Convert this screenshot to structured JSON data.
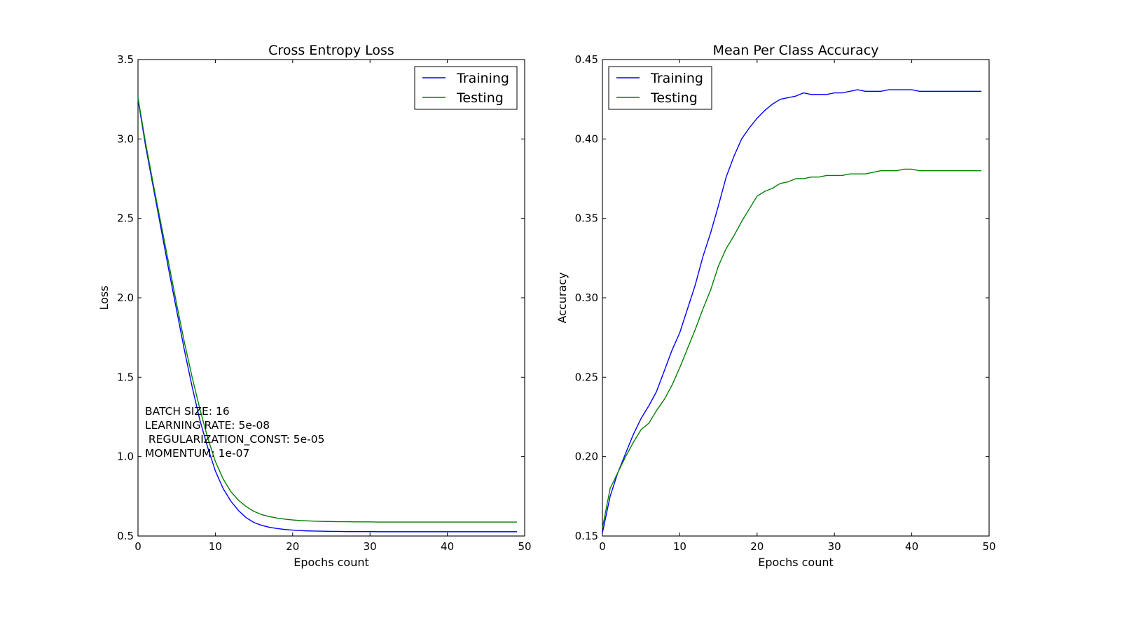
{
  "chart_data": [
    {
      "type": "line",
      "title": "Cross Entropy Loss",
      "xlabel": "Epochs count",
      "ylabel": "Loss",
      "xlim": [
        0,
        50
      ],
      "ylim": [
        0.5,
        3.5
      ],
      "xticks": [
        "0",
        "10",
        "20",
        "30",
        "40",
        "50"
      ],
      "yticks": [
        "0.5",
        "1.0",
        "1.5",
        "2.0",
        "2.5",
        "3.0",
        "3.5"
      ],
      "grid": false,
      "legend": "top-right",
      "annotation": [
        "BATCH SIZE: 16",
        "LEARNING RATE: 5e-08",
        " REGULARIZATION_CONST: 5e-05",
        "MOMENTUM: 1e-07"
      ],
      "x": [
        0,
        1,
        2,
        3,
        4,
        5,
        6,
        7,
        8,
        9,
        10,
        11,
        12,
        13,
        14,
        15,
        16,
        17,
        18,
        19,
        20,
        21,
        22,
        23,
        24,
        25,
        26,
        27,
        28,
        29,
        30,
        31,
        32,
        33,
        34,
        35,
        36,
        37,
        38,
        39,
        40,
        41,
        42,
        43,
        44,
        45,
        46,
        47,
        48,
        49
      ],
      "series": [
        {
          "name": "Training",
          "color": "#0000ff",
          "values": [
            3.25,
            2.95,
            2.69,
            2.43,
            2.17,
            1.92,
            1.67,
            1.44,
            1.23,
            1.06,
            0.91,
            0.8,
            0.72,
            0.66,
            0.615,
            0.585,
            0.567,
            0.555,
            0.547,
            0.541,
            0.537,
            0.534,
            0.532,
            0.531,
            0.53,
            0.529,
            0.529,
            0.528,
            0.528,
            0.528,
            0.528,
            0.527,
            0.527,
            0.527,
            0.527,
            0.527,
            0.527,
            0.527,
            0.527,
            0.527,
            0.527,
            0.527,
            0.527,
            0.527,
            0.527,
            0.527,
            0.527,
            0.527,
            0.527,
            0.527
          ]
        },
        {
          "name": "Testing",
          "color": "#008000",
          "values": [
            3.26,
            2.97,
            2.71,
            2.46,
            2.21,
            1.96,
            1.72,
            1.5,
            1.3,
            1.12,
            0.97,
            0.86,
            0.78,
            0.725,
            0.685,
            0.655,
            0.635,
            0.622,
            0.613,
            0.606,
            0.601,
            0.597,
            0.595,
            0.593,
            0.592,
            0.591,
            0.59,
            0.59,
            0.589,
            0.589,
            0.589,
            0.588,
            0.588,
            0.588,
            0.588,
            0.588,
            0.588,
            0.588,
            0.588,
            0.588,
            0.588,
            0.588,
            0.588,
            0.588,
            0.588,
            0.588,
            0.588,
            0.588,
            0.588,
            0.588
          ]
        }
      ]
    },
    {
      "type": "line",
      "title": "Mean Per Class Accuracy",
      "xlabel": "Epochs count",
      "ylabel": "Accuracy",
      "xlim": [
        0,
        50
      ],
      "ylim": [
        0.15,
        0.45
      ],
      "xticks": [
        "0",
        "10",
        "20",
        "30",
        "40",
        "50"
      ],
      "yticks": [
        "0.15",
        "0.20",
        "0.25",
        "0.30",
        "0.35",
        "0.40",
        "0.45"
      ],
      "grid": false,
      "legend": "top-left",
      "x": [
        0,
        1,
        2,
        3,
        4,
        5,
        6,
        7,
        8,
        9,
        10,
        11,
        12,
        13,
        14,
        15,
        16,
        17,
        18,
        19,
        20,
        21,
        22,
        23,
        24,
        25,
        26,
        27,
        28,
        29,
        30,
        31,
        32,
        33,
        34,
        35,
        36,
        37,
        38,
        39,
        40,
        41,
        42,
        43,
        44,
        45,
        46,
        47,
        48,
        49
      ],
      "series": [
        {
          "name": "Training",
          "color": "#0000ff",
          "values": [
            0.152,
            0.175,
            0.19,
            0.202,
            0.214,
            0.224,
            0.232,
            0.241,
            0.254,
            0.267,
            0.278,
            0.293,
            0.308,
            0.326,
            0.341,
            0.358,
            0.376,
            0.389,
            0.4,
            0.407,
            0.413,
            0.418,
            0.422,
            0.425,
            0.426,
            0.427,
            0.429,
            0.428,
            0.428,
            0.428,
            0.429,
            0.429,
            0.43,
            0.431,
            0.43,
            0.43,
            0.43,
            0.431,
            0.431,
            0.431,
            0.431,
            0.43,
            0.43,
            0.43,
            0.43,
            0.43,
            0.43,
            0.43,
            0.43,
            0.43
          ]
        },
        {
          "name": "Testing",
          "color": "#008000",
          "values": [
            0.155,
            0.18,
            0.19,
            0.2,
            0.209,
            0.217,
            0.221,
            0.229,
            0.236,
            0.245,
            0.256,
            0.268,
            0.28,
            0.293,
            0.305,
            0.32,
            0.331,
            0.339,
            0.348,
            0.356,
            0.364,
            0.367,
            0.369,
            0.372,
            0.373,
            0.375,
            0.375,
            0.376,
            0.376,
            0.377,
            0.377,
            0.377,
            0.378,
            0.378,
            0.378,
            0.379,
            0.38,
            0.38,
            0.38,
            0.381,
            0.381,
            0.38,
            0.38,
            0.38,
            0.38,
            0.38,
            0.38,
            0.38,
            0.38,
            0.38
          ]
        }
      ]
    }
  ]
}
